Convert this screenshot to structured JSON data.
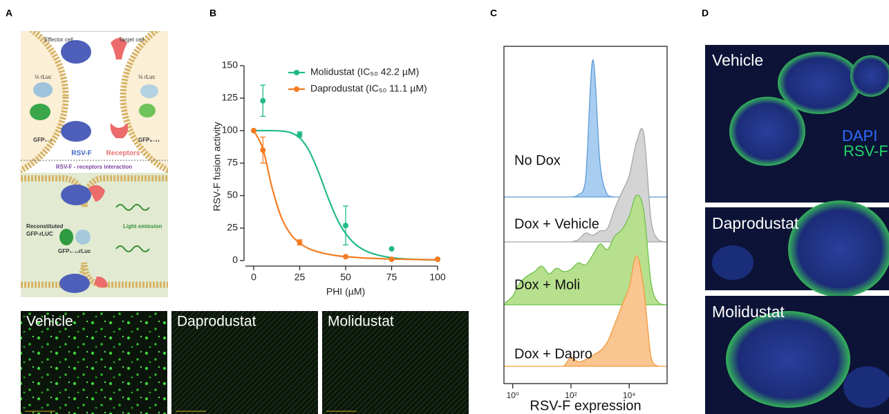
{
  "panels": [
    "A",
    "B",
    "C",
    "D"
  ],
  "schematic": {
    "labels": [
      "Effector cell",
      "Target cell",
      "½ rLuc",
      "½ rLuc",
      "GFP₁₋₇",
      "GFP₈₋₁₁",
      "RSV-F",
      "Receptors",
      "RSV-F - receptors interaction",
      "Reconstituted",
      "GFP-rLUC",
      "GFP₁₋₁₁",
      "rLuc",
      "Light emission"
    ]
  },
  "micrographs": {
    "row": [
      "Vehicle",
      "Daprodustat",
      "Molidustat"
    ],
    "stack": [
      "Vehicle",
      "Daprodustat",
      "Molidustat"
    ],
    "stains": [
      {
        "text": "DAPI",
        "color": "#2f6bff"
      },
      {
        "text": "RSV-F",
        "color": "#22d36b"
      }
    ]
  },
  "chart_data": [
    {
      "type": "line",
      "x_label": "PHI (µM)",
      "y_label": "RSV-F fusion activity",
      "legend": "top",
      "x": [
        0,
        5,
        25,
        50,
        75,
        100
      ],
      "xlim": [
        0,
        100
      ],
      "xticks": [
        0,
        25,
        50,
        75,
        100
      ],
      "ylim": [
        0,
        150
      ],
      "yticks": [
        0,
        25,
        50,
        75,
        100,
        125,
        150
      ],
      "fit_x": [
        0,
        5,
        10,
        15,
        20,
        25,
        30,
        35,
        40,
        45,
        50,
        55,
        60,
        65,
        70,
        75,
        80,
        85,
        90,
        95,
        100
      ],
      "series": [
        {
          "name": "Molidustat (IC₅₀ 42.2 µM)",
          "color": "#21b98a",
          "values": [
            100,
            123,
            97,
            27,
            9,
            1
          ],
          "errors": [
            null,
            12,
            2,
            15,
            null,
            null
          ],
          "fit_values": [
            100,
            100,
            100,
            99.7,
            98.5,
            94.4,
            84.9,
            69,
            50,
            33,
            20.8,
            12.9,
            8.1,
            5.2,
            3.4,
            2.2,
            1.5,
            1.1,
            0.8,
            0.55,
            0.4
          ]
        },
        {
          "name": "Daprodustat (IC₅₀ 11.1 µM)",
          "color": "#f47b20",
          "values": [
            100,
            85,
            14,
            3,
            1,
            1
          ],
          "errors": [
            null,
            10,
            2,
            null,
            null,
            null
          ],
          "fit_values": [
            100,
            86,
            56,
            33.3,
            20.5,
            13.4,
            9.2,
            6.7,
            5,
            3.8,
            3,
            2.5,
            2,
            1.7,
            1.4,
            1.2,
            1.1,
            0.9,
            0.8,
            0.7,
            0.6
          ]
        }
      ]
    },
    {
      "type": "ridgeline",
      "x_label": "RSV-F expression",
      "xscale": "log",
      "xlim": [
        0.5,
        200000
      ],
      "xticks": [
        {
          "value": 1,
          "label": "10⁰"
        },
        {
          "value": 100,
          "label": "10²"
        },
        {
          "value": 10000,
          "label": "10⁴"
        }
      ],
      "x": [
        0.56,
        1,
        1.78,
        3.16,
        5.62,
        10,
        17.8,
        31.6,
        56.2,
        100,
        178,
        316,
        562,
        1000,
        1778,
        3162,
        5623,
        10000,
        17783,
        31623,
        56234,
        100000,
        177828
      ],
      "series": [
        {
          "name": "No Dox",
          "color": "#5b9bd5",
          "fill": "#a9cdf1",
          "values": [
            0,
            0,
            0,
            0,
            0,
            0,
            0,
            0,
            0,
            0,
            2,
            15,
            124,
            30,
            2,
            0,
            0,
            0,
            0,
            0,
            0,
            0,
            0
          ]
        },
        {
          "name": "Dox + Vehicle",
          "color": "#a6a6a6",
          "fill": "#d4d4d4",
          "values": [
            0,
            0,
            0,
            0,
            0,
            0,
            0,
            0,
            0,
            0,
            2,
            8,
            6,
            10,
            12,
            30,
            45,
            60,
            90,
            98,
            20,
            2,
            0
          ]
        },
        {
          "name": "Dox + Moli",
          "color": "#6cc04a",
          "fill": "#b7e08e",
          "values": [
            2,
            8,
            20,
            26,
            30,
            35,
            28,
            33,
            30,
            32,
            38,
            36,
            45,
            55,
            50,
            62,
            68,
            80,
            99,
            85,
            20,
            2,
            0
          ]
        },
        {
          "name": "Dox + Dapro",
          "color": "#f39a3c",
          "fill": "#f9c590",
          "values": [
            0,
            0,
            0,
            0,
            0,
            0,
            0,
            0,
            0,
            8,
            4,
            6,
            10,
            14,
            22,
            38,
            55,
            72,
            100,
            70,
            8,
            0,
            0
          ]
        }
      ]
    }
  ]
}
